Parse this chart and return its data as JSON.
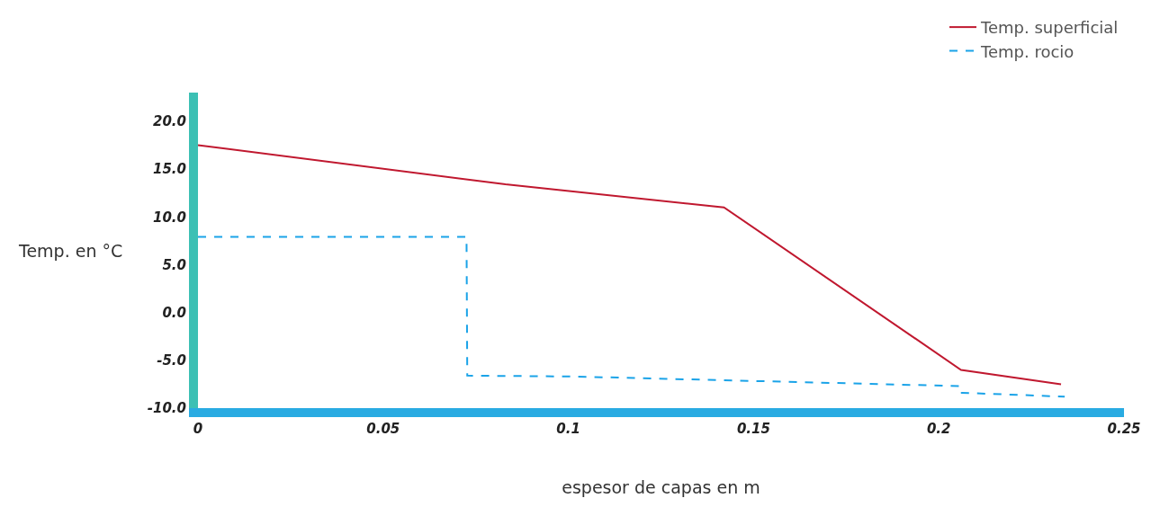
{
  "chart_data": {
    "type": "line",
    "xlabel": "espesor de capas en m",
    "ylabel": "Temp. en °C",
    "xlim": [
      0,
      0.25
    ],
    "xticks": [
      0,
      0.05,
      {
        "value": 0.1,
        "label": "0.1"
      },
      0.15,
      {
        "value": 0.2,
        "label": "0.2"
      },
      0.25
    ],
    "ylim": [
      -10,
      23
    ],
    "yticks": [
      {
        "value": -10,
        "label": "-10.0"
      },
      {
        "value": -5,
        "label": "-5.0"
      },
      {
        "value": 0,
        "label": "0.0"
      },
      {
        "value": 5,
        "label": "5.0"
      },
      {
        "value": 10,
        "label": "10.0"
      },
      {
        "value": 15,
        "label": "15.0"
      },
      {
        "value": 20,
        "label": "20.0"
      }
    ],
    "grid": false,
    "legend": "top right",
    "marker": "none",
    "series": [
      {
        "name": "Temp. superficial",
        "color": "#c0182f",
        "line_style": "solid",
        "x": [
          0,
          0.083,
          0.142,
          0.206,
          0.233
        ],
        "values": [
          17.5,
          13.4,
          11.0,
          -6.0,
          -7.5
        ]
      },
      {
        "name": "Temp. rocio",
        "color": "#1aa3e8",
        "line_style": "dashed",
        "x": [
          0,
          0.0725,
          0.0727,
          0.102,
          0.206,
          0.2062,
          0.234
        ],
        "values": [
          7.9,
          7.9,
          -6.6,
          -6.7,
          -7.7,
          -8.4,
          -8.8
        ]
      }
    ]
  }
}
